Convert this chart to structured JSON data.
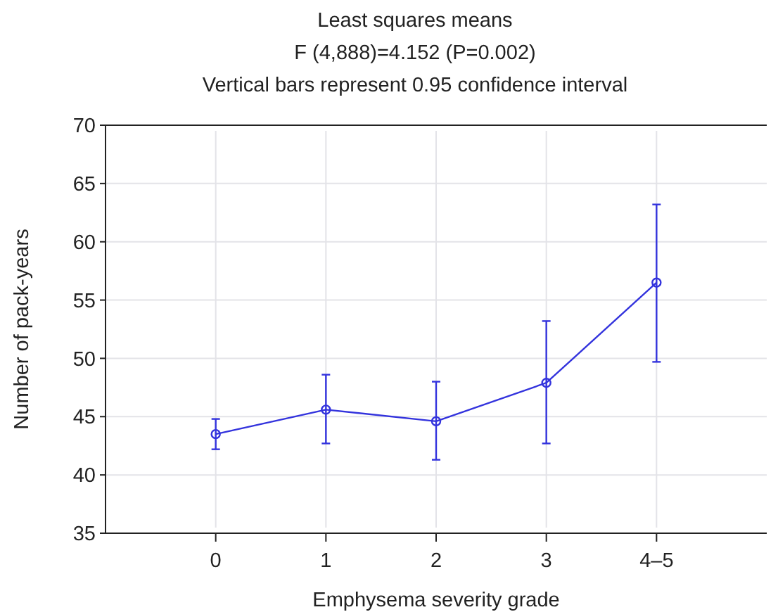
{
  "chart_data": {
    "type": "line",
    "title": "Least squares means",
    "subtitle": "F (4,888)=4.152 (P=0.002)\nVertical bars represent 0.95 confidence interval",
    "xlabel": "Emphysema severity grade",
    "ylabel": "Number of pack-years",
    "categories": [
      "0",
      "1",
      "2",
      "3",
      "4–5"
    ],
    "series": [
      {
        "color": "#3333dd",
        "values": [
          43.5,
          45.6,
          44.6,
          47.9,
          56.5
        ],
        "errors": [
          [
            42.2,
            44.8
          ],
          [
            42.7,
            48.6
          ],
          [
            41.3,
            48.0
          ],
          [
            42.7,
            53.2
          ],
          [
            49.7,
            63.2
          ]
        ]
      }
    ],
    "ylim": [
      35,
      70
    ],
    "yticks": [
      35,
      40,
      45,
      50,
      55,
      60,
      65,
      70
    ],
    "grid": true,
    "marker": "circle",
    "line_style": "solid"
  }
}
